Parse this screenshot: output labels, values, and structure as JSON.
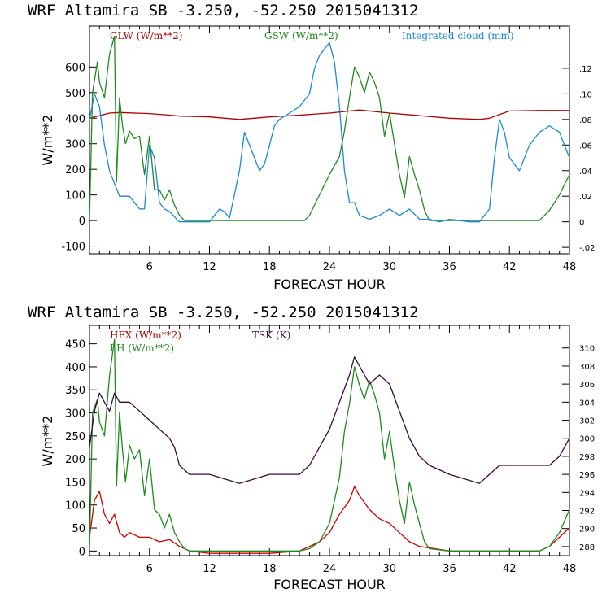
{
  "chart_data": [
    {
      "type": "line",
      "title": "WRF  Altamira  SB  -3.250, -52.250  2015041312",
      "xlabel": "FORECAST HOUR",
      "ylabel": "W/m**2",
      "xlim": [
        0,
        48
      ],
      "xticks": [
        "6",
        "12",
        "18",
        "24",
        "30",
        "36",
        "42",
        "48"
      ],
      "ylim": [
        -130,
        760
      ],
      "yticks": [
        "-100",
        "0",
        "100",
        "200",
        "300",
        "400",
        "500",
        "600"
      ],
      "y2lim": [
        -0.025,
        0.153
      ],
      "y2ticks": [
        "-.02",
        "0",
        ".02",
        ".04",
        ".06",
        ".08",
        ".10",
        ".12"
      ],
      "legend": [
        {
          "label": "GLW (W/m**2)",
          "color": "#b00000"
        },
        {
          "label": "GSW (W/m**2)",
          "color": "#1e8a1e"
        },
        {
          "label": "Integrated cloud (mm)",
          "color": "#1a8ad8"
        }
      ],
      "series": [
        {
          "name": "GLW",
          "axis": "left",
          "color": "#b00000",
          "x": [
            0,
            1,
            2,
            3,
            6,
            8,
            9,
            12,
            15,
            18,
            21,
            24,
            27,
            30,
            33,
            36,
            39,
            40,
            42,
            45,
            48
          ],
          "values": [
            400,
            410,
            420,
            422,
            418,
            412,
            408,
            405,
            395,
            405,
            412,
            420,
            432,
            420,
            410,
            400,
            395,
            400,
            428,
            430,
            430
          ]
        },
        {
          "name": "GSW",
          "axis": "left",
          "color": "#1e8a1e",
          "x": [
            0,
            0.3,
            0.8,
            1,
            1.5,
            2,
            2.5,
            2.7,
            3,
            3.3,
            3.6,
            4,
            4.5,
            5,
            5.5,
            6,
            6.5,
            7,
            7.5,
            8,
            8.5,
            9,
            9.5,
            10,
            12,
            15,
            18,
            21.5,
            22,
            23,
            24,
            25,
            25.5,
            26,
            26.5,
            27,
            27.5,
            28,
            28.5,
            29,
            29.5,
            30,
            30.5,
            31,
            31.5,
            32,
            32.5,
            33,
            33.5,
            34,
            36,
            40,
            45,
            46,
            47,
            48
          ],
          "values": [
            0,
            500,
            620,
            540,
            480,
            650,
            720,
            150,
            480,
            370,
            300,
            350,
            320,
            330,
            180,
            330,
            120,
            120,
            80,
            120,
            60,
            20,
            0,
            0,
            0,
            0,
            0,
            0,
            20,
            100,
            180,
            250,
            350,
            480,
            600,
            560,
            500,
            580,
            540,
            480,
            330,
            420,
            300,
            180,
            90,
            250,
            180,
            120,
            40,
            0,
            0,
            0,
            0,
            40,
            100,
            180
          ]
        },
        {
          "name": "Integrated cloud",
          "axis": "right",
          "color": "#1a8ad8",
          "x": [
            0,
            0.5,
            1,
            1.5,
            2,
            2.5,
            3,
            3.5,
            4,
            5,
            5.5,
            6,
            6.5,
            7,
            7.5,
            8,
            9,
            10,
            12,
            13,
            13.5,
            14,
            15,
            15.5,
            16,
            16.5,
            17,
            17.5,
            18,
            18.5,
            19,
            20,
            21,
            22,
            22.5,
            23,
            23.5,
            24,
            24.5,
            25,
            25.5,
            26,
            26.5,
            27,
            28,
            29,
            30,
            31,
            32,
            33,
            34,
            35,
            36,
            38,
            39,
            40,
            40.5,
            41,
            41.5,
            42,
            43,
            44,
            45,
            46,
            47,
            48
          ],
          "values": [
            0.08,
            0.1,
            0.09,
            0.06,
            0.04,
            0.03,
            0.02,
            0.02,
            0.02,
            0.01,
            0.01,
            0.06,
            0.05,
            0.015,
            0.01,
            0.008,
            0,
            0,
            0,
            0.01,
            0.008,
            0.003,
            0.04,
            0.07,
            0.06,
            0.05,
            0.04,
            0.045,
            0.06,
            0.075,
            0.08,
            0.085,
            0.09,
            0.1,
            0.12,
            0.13,
            0.135,
            0.14,
            0.125,
            0.09,
            0.04,
            0.015,
            0.015,
            0.005,
            0.002,
            0.005,
            0.01,
            0.005,
            0.01,
            0.002,
            0.002,
            0,
            0.002,
            0,
            0,
            0.01,
            0.05,
            0.08,
            0.07,
            0.05,
            0.04,
            0.06,
            0.07,
            0.075,
            0.07,
            0.05
          ]
        }
      ]
    },
    {
      "type": "line",
      "title": "WRF  Altamira  SB  -3.250, -52.250  2015041312",
      "xlabel": "FORECAST HOUR",
      "ylabel": "W/m**2",
      "xlim": [
        0,
        48
      ],
      "xticks": [
        "6",
        "12",
        "18",
        "24",
        "30",
        "36",
        "42",
        "48"
      ],
      "ylim": [
        -10,
        490
      ],
      "yticks": [
        "0",
        "50",
        "100",
        "150",
        "200",
        "250",
        "300",
        "350",
        "400",
        "450"
      ],
      "y2lim": [
        287,
        312.5
      ],
      "y2ticks": [
        "288",
        "290",
        "292",
        "294",
        "296",
        "298",
        "300",
        "302",
        "304",
        "306",
        "308",
        "310"
      ],
      "legend": [
        {
          "label": "HFX (W/m**2)",
          "color": "#b00000"
        },
        {
          "label": "LH  (W/m**2)",
          "color": "#1e8a1e"
        },
        {
          "label": "TSK (K)",
          "color": "#3a0a3a"
        }
      ],
      "series": [
        {
          "name": "HFX",
          "axis": "left",
          "color": "#cc0000",
          "x": [
            0,
            0.5,
            1,
            1.5,
            2,
            2.5,
            3,
            3.5,
            4,
            5,
            6,
            7,
            8,
            9,
            10,
            12,
            18,
            21,
            22,
            23,
            24,
            25,
            26,
            26.5,
            27,
            28,
            29,
            30,
            31,
            32,
            33,
            36,
            40,
            45,
            46,
            47,
            48
          ],
          "values": [
            30,
            110,
            130,
            80,
            60,
            80,
            40,
            30,
            40,
            30,
            30,
            20,
            25,
            10,
            0,
            -5,
            -5,
            0,
            10,
            20,
            40,
            80,
            110,
            140,
            120,
            90,
            70,
            60,
            40,
            20,
            10,
            0,
            0,
            0,
            10,
            30,
            50
          ]
        },
        {
          "name": "LH",
          "axis": "left",
          "color": "#1e8a1e",
          "x": [
            0,
            0.3,
            0.8,
            1,
            1.5,
            2,
            2.5,
            2.7,
            3,
            3.3,
            3.6,
            4,
            4.5,
            5,
            5.5,
            6,
            6.5,
            7,
            7.5,
            8,
            8.5,
            9,
            9.5,
            10,
            12,
            18,
            21,
            22,
            23,
            24,
            25,
            25.5,
            26,
            26.5,
            27,
            27.5,
            28,
            28.5,
            29,
            29.5,
            30,
            30.5,
            31,
            31.5,
            32,
            32.5,
            33,
            33.5,
            34,
            36,
            40,
            45,
            46,
            47,
            48
          ],
          "values": [
            0,
            300,
            330,
            280,
            250,
            380,
            460,
            140,
            300,
            220,
            150,
            230,
            200,
            220,
            120,
            200,
            90,
            80,
            50,
            80,
            40,
            20,
            5,
            0,
            0,
            0,
            0,
            5,
            20,
            60,
            160,
            260,
            320,
            400,
            360,
            330,
            370,
            340,
            300,
            200,
            260,
            180,
            110,
            60,
            150,
            100,
            60,
            20,
            5,
            0,
            0,
            0,
            10,
            40,
            90
          ]
        },
        {
          "name": "TSK",
          "axis": "right",
          "color": "#3a0a3a",
          "x": [
            0,
            0.5,
            1,
            1.5,
            2,
            2.5,
            3,
            4,
            5,
            6,
            7,
            8,
            8.5,
            9,
            10,
            12,
            15,
            18,
            21,
            22,
            23,
            24,
            25,
            26,
            26.5,
            27,
            28,
            29,
            30,
            31,
            32,
            33,
            34,
            36,
            39,
            40,
            41,
            42,
            45,
            46,
            47,
            48
          ],
          "values": [
            299,
            303,
            305,
            304,
            303,
            305,
            304,
            304,
            303,
            302,
            301,
            300,
            299,
            297,
            296,
            296,
            295,
            296,
            296,
            297,
            299,
            301,
            304,
            307,
            309,
            308,
            306,
            307,
            306,
            303,
            300,
            298,
            297,
            296,
            295,
            296,
            297,
            297,
            297,
            297,
            298,
            300
          ]
        }
      ]
    }
  ]
}
